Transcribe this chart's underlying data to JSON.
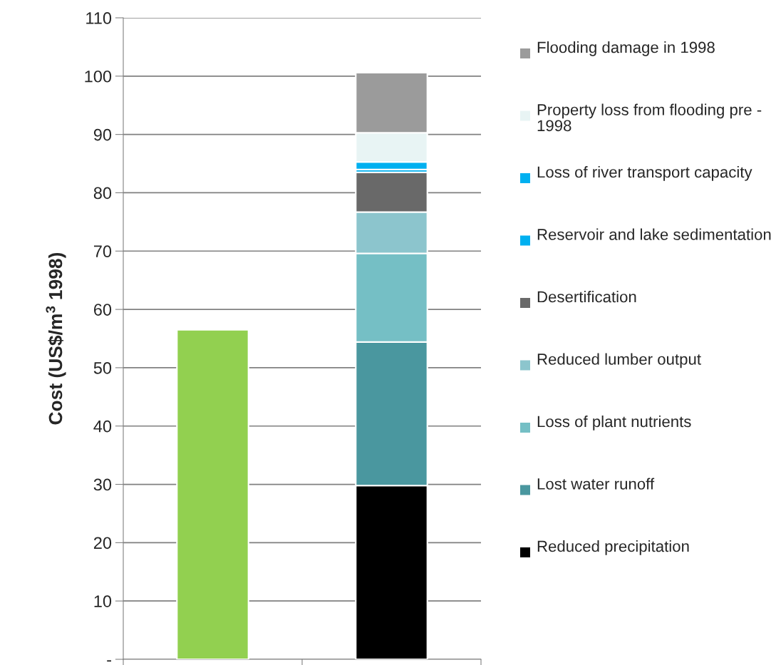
{
  "chart_data": {
    "type": "bar",
    "stacked": true,
    "ylabel": "Cost (US$/m$^{3}$ 1998)",
    "categories": [
      null,
      null
    ],
    "series": [
      {
        "color": "#92d050",
        "values": [
          56.5,
          null
        ]
      },
      {
        "name": "Reduced precipitation",
        "color": "#000000",
        "values": [
          null,
          29.8
        ]
      },
      {
        "name": "Lost water runoff",
        "color": "#4a979f",
        "values": [
          null,
          24.6
        ]
      },
      {
        "name": "Loss of plant nutrients",
        "color": "#75bfc5",
        "values": [
          null,
          15.2
        ]
      },
      {
        "name": "Reduced lumber output",
        "color": "#8cc5cd",
        "values": [
          null,
          7.1
        ]
      },
      {
        "name": "Desertification",
        "color": "#696969",
        "values": [
          null,
          6.8
        ]
      },
      {
        "name": "Reservoir and lake sedimentation",
        "color": "#00b0f0",
        "values": [
          null,
          0.5
        ]
      },
      {
        "name": "Loss of river transport capacity",
        "color": "#00b0f0",
        "values": [
          null,
          1.3
        ]
      },
      {
        "name": "Property loss from flooding pre - 1998",
        "color": "#e8f4f4",
        "values": [
          null,
          5.0
        ]
      },
      {
        "name": "Flooding damage in 1998",
        "color": "#9b9b9b",
        "values": [
          null,
          10.3
        ]
      }
    ],
    "ylim": [
      0,
      110
    ],
    "yticks": [
      {
        "value": 0,
        "label": "-"
      },
      10,
      20,
      30,
      40,
      50,
      60,
      70,
      80,
      90,
      100,
      110
    ],
    "grid": "y",
    "legend": "right"
  }
}
